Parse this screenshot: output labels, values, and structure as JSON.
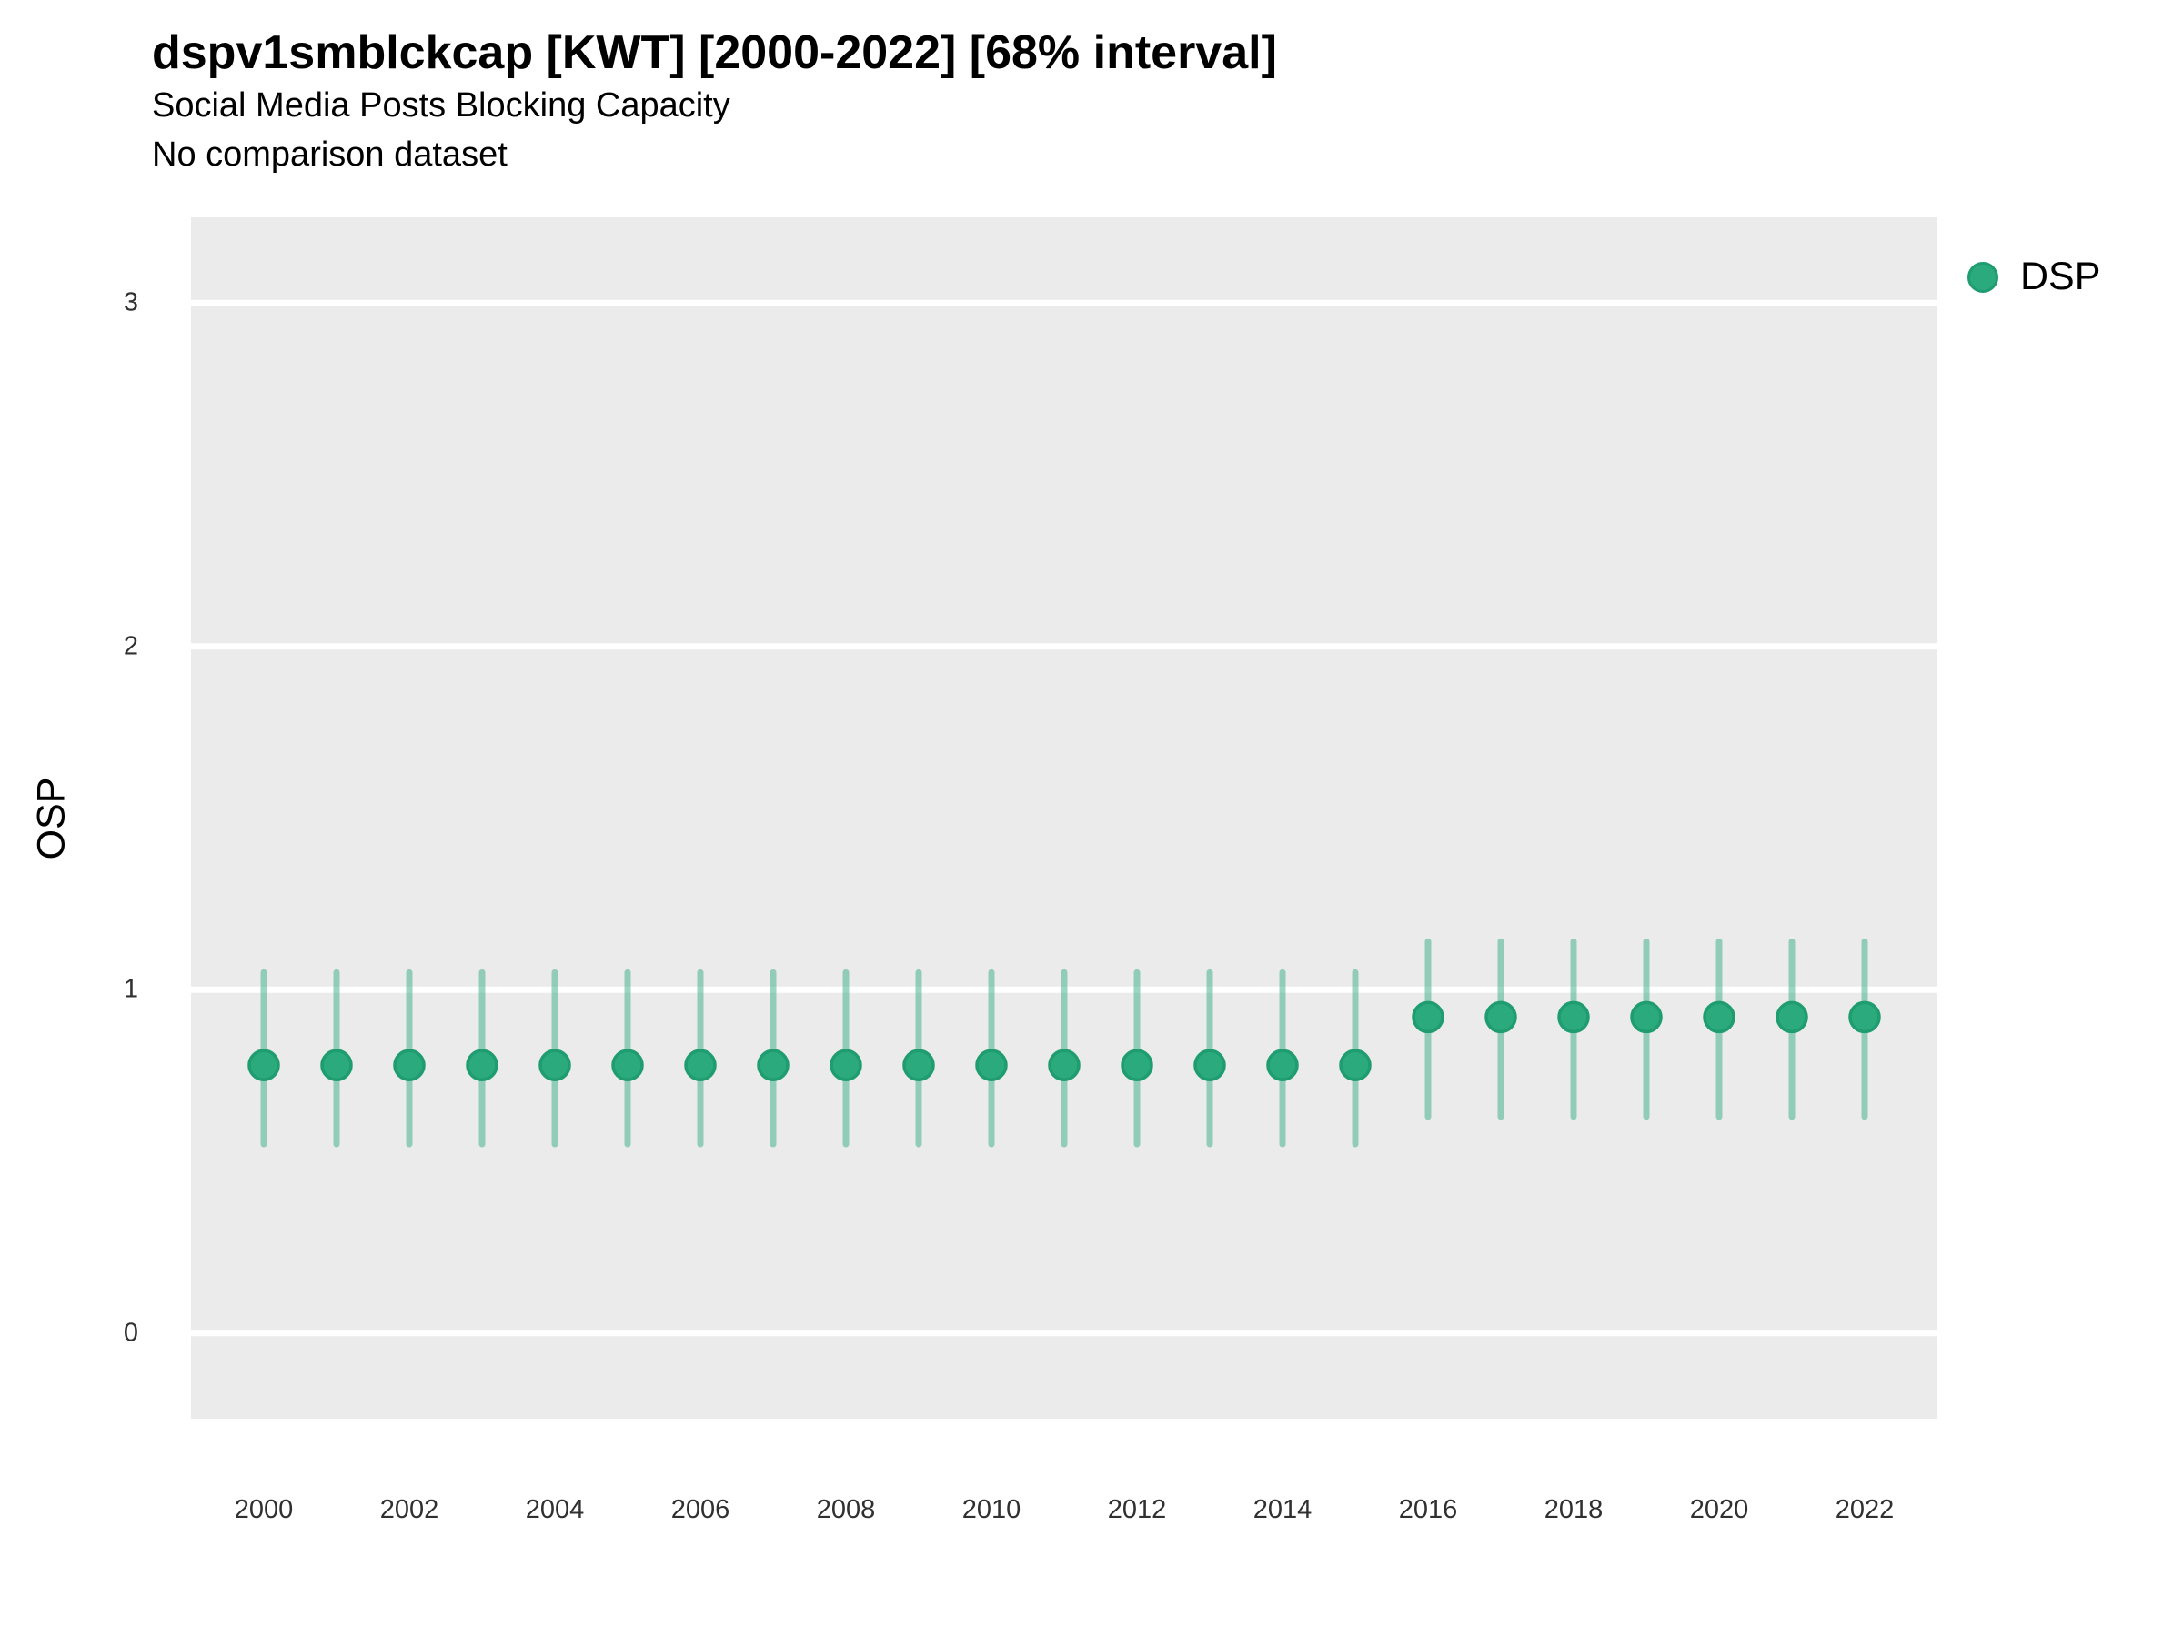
{
  "colors": {
    "point_fill": "#2BAA7E",
    "point_stroke": "#1F9C70",
    "interval_line": "rgba(43,170,126,0.48)",
    "panel_bg": "#EBEBEB",
    "grid_line": "#FFFFFF",
    "tick_text": "#303030",
    "text": "#000000"
  },
  "chart_data": {
    "type": "scatter",
    "subtype": "pointrange",
    "title": "dspv1smblckcap [KWT] [2000-2022] [68% interval]",
    "subtitle": "Social Media Posts Blocking Capacity",
    "note": "No comparison dataset",
    "xlabel": "",
    "ylabel": "OSP",
    "interval_level": "68%",
    "xlim": [
      1999,
      2023
    ],
    "ylim": [
      -0.25,
      3.25
    ],
    "x_ticks": [
      2000,
      2002,
      2004,
      2006,
      2008,
      2010,
      2012,
      2014,
      2016,
      2018,
      2020,
      2022
    ],
    "y_ticks": [
      0,
      1,
      2,
      3
    ],
    "grid": "horizontal-major-white-on-gray",
    "legend_position": "right",
    "legend": [
      {
        "label": "DSP"
      }
    ],
    "series": [
      {
        "name": "DSP",
        "x": [
          2000,
          2001,
          2002,
          2003,
          2004,
          2005,
          2006,
          2007,
          2008,
          2009,
          2010,
          2011,
          2012,
          2013,
          2014,
          2015,
          2016,
          2017,
          2018,
          2019,
          2020,
          2021,
          2022
        ],
        "y": [
          0.78,
          0.78,
          0.78,
          0.78,
          0.78,
          0.78,
          0.78,
          0.78,
          0.78,
          0.78,
          0.78,
          0.78,
          0.78,
          0.78,
          0.78,
          0.78,
          0.92,
          0.92,
          0.92,
          0.92,
          0.92,
          0.92,
          0.92
        ],
        "lo": [
          0.55,
          0.55,
          0.55,
          0.55,
          0.55,
          0.55,
          0.55,
          0.55,
          0.55,
          0.55,
          0.55,
          0.55,
          0.55,
          0.55,
          0.55,
          0.55,
          0.63,
          0.63,
          0.63,
          0.63,
          0.63,
          0.63,
          0.63
        ],
        "hi": [
          1.05,
          1.05,
          1.05,
          1.05,
          1.05,
          1.05,
          1.05,
          1.05,
          1.05,
          1.05,
          1.05,
          1.05,
          1.05,
          1.05,
          1.05,
          1.05,
          1.14,
          1.14,
          1.14,
          1.14,
          1.14,
          1.14,
          1.14
        ]
      }
    ]
  }
}
